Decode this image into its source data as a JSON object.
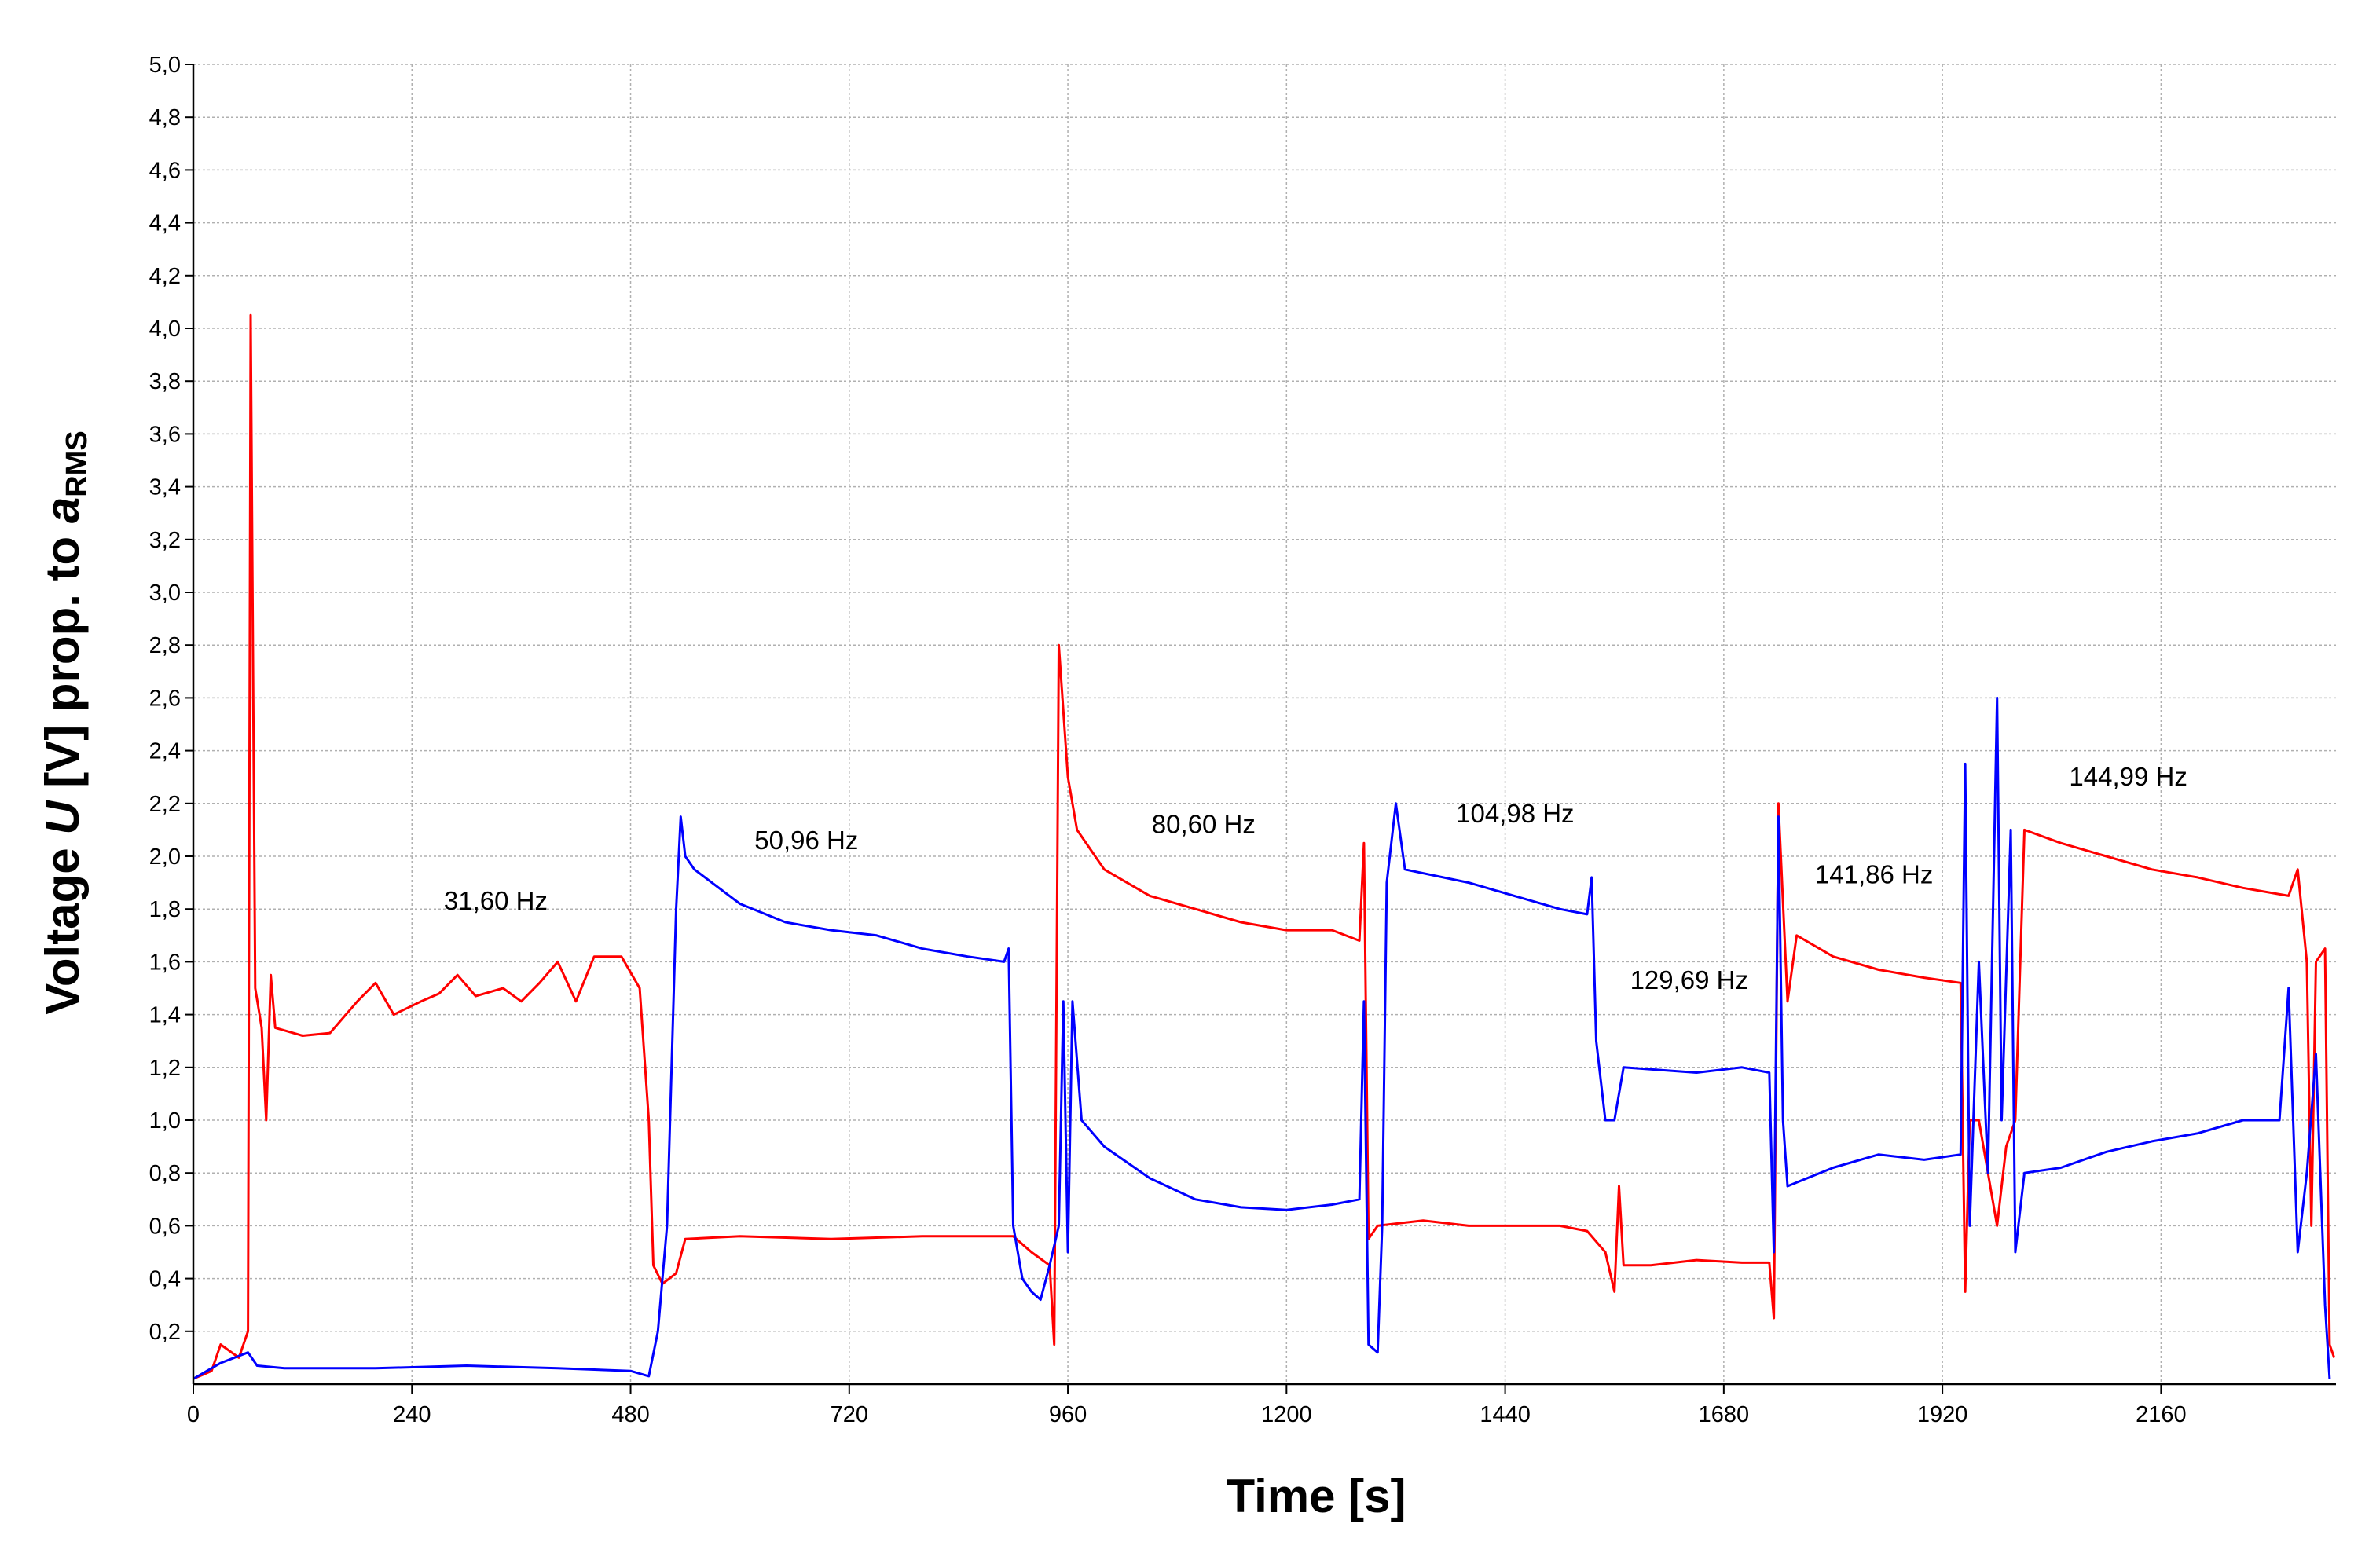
{
  "chart_data": {
    "type": "line",
    "xlabel": "Time [s]",
    "ylabel_parts": [
      "Voltage ",
      "U",
      " [V] prop. to ",
      "a",
      "RMS"
    ],
    "xlim": [
      0,
      2352
    ],
    "ylim": [
      0,
      5
    ],
    "xticks": [
      0,
      240,
      480,
      720,
      960,
      1200,
      1440,
      1680,
      1920,
      2160
    ],
    "yticks": [
      {
        "value": 0.2,
        "label": "0,2"
      },
      {
        "value": 0.4,
        "label": "0,4"
      },
      {
        "value": 0.6,
        "label": "0,6"
      },
      {
        "value": 0.8,
        "label": "0,8"
      },
      {
        "value": 1.0,
        "label": "1,0"
      },
      {
        "value": 1.2,
        "label": "1,2"
      },
      {
        "value": 1.4,
        "label": "1,4"
      },
      {
        "value": 1.6,
        "label": "1,6"
      },
      {
        "value": 1.8,
        "label": "1,8"
      },
      {
        "value": 2.0,
        "label": "2,0"
      },
      {
        "value": 2.2,
        "label": "2,2"
      },
      {
        "value": 2.4,
        "label": "2,4"
      },
      {
        "value": 2.6,
        "label": "2,6"
      },
      {
        "value": 2.8,
        "label": "2,8"
      },
      {
        "value": 3.0,
        "label": "3,0"
      },
      {
        "value": 3.2,
        "label": "3,2"
      },
      {
        "value": 3.4,
        "label": "3,4"
      },
      {
        "value": 3.6,
        "label": "3,6"
      },
      {
        "value": 3.8,
        "label": "3,8"
      },
      {
        "value": 4.0,
        "label": "4,0"
      },
      {
        "value": 4.2,
        "label": "4,2"
      },
      {
        "value": 4.4,
        "label": "4,4"
      },
      {
        "value": 4.6,
        "label": "4,6"
      },
      {
        "value": 4.8,
        "label": "4,8"
      },
      {
        "value": 5.0,
        "label": "5,0"
      }
    ],
    "grid": true,
    "annotations": [
      "31,60 Hz",
      "50,96 Hz",
      "80,60 Hz",
      "104,98 Hz",
      "129,69 Hz",
      "141,86 Hz",
      "144,99 Hz"
    ],
    "series": [
      {
        "color": "#ff0000",
        "x": [
          0,
          20,
          30,
          50,
          60,
          63,
          68,
          75,
          80,
          85,
          90,
          120,
          150,
          180,
          200,
          220,
          250,
          270,
          290,
          310,
          340,
          360,
          380,
          400,
          420,
          440,
          470,
          490,
          500,
          505,
          515,
          530,
          540,
          600,
          700,
          800,
          900,
          920,
          940,
          945,
          950,
          960,
          970,
          1000,
          1050,
          1100,
          1150,
          1200,
          1250,
          1280,
          1285,
          1290,
          1300,
          1350,
          1400,
          1450,
          1500,
          1530,
          1550,
          1560,
          1565,
          1570,
          1600,
          1650,
          1700,
          1730,
          1735,
          1740,
          1750,
          1760,
          1800,
          1850,
          1900,
          1940,
          1945,
          1950,
          1960,
          1980,
          1990,
          2000,
          2010,
          2050,
          2100,
          2150,
          2200,
          2250,
          2300,
          2310,
          2320,
          2325,
          2330,
          2340,
          2345,
          2350
        ],
        "values": [
          0.02,
          0.05,
          0.15,
          0.1,
          0.2,
          4.05,
          1.5,
          1.35,
          1.0,
          1.55,
          1.35,
          1.32,
          1.33,
          1.45,
          1.52,
          1.4,
          1.45,
          1.48,
          1.55,
          1.47,
          1.5,
          1.45,
          1.52,
          1.6,
          1.45,
          1.62,
          1.62,
          1.5,
          1.0,
          0.45,
          0.38,
          0.42,
          0.55,
          0.56,
          0.55,
          0.56,
          0.56,
          0.5,
          0.45,
          0.15,
          2.8,
          2.3,
          2.1,
          1.95,
          1.85,
          1.8,
          1.75,
          1.72,
          1.72,
          1.68,
          2.05,
          0.55,
          0.6,
          0.62,
          0.6,
          0.6,
          0.6,
          0.58,
          0.5,
          0.35,
          0.75,
          0.45,
          0.45,
          0.47,
          0.46,
          0.46,
          0.25,
          2.2,
          1.45,
          1.7,
          1.62,
          1.57,
          1.54,
          1.52,
          0.35,
          1.0,
          1.0,
          0.6,
          0.9,
          1.0,
          2.1,
          2.05,
          2.0,
          1.95,
          1.92,
          1.88,
          1.85,
          1.95,
          1.6,
          0.6,
          1.6,
          1.65,
          0.15,
          0.1
        ]
      },
      {
        "color": "#0000ff",
        "x": [
          0,
          30,
          60,
          70,
          100,
          200,
          300,
          400,
          480,
          500,
          510,
          520,
          530,
          535,
          540,
          550,
          600,
          650,
          700,
          750,
          800,
          850,
          890,
          895,
          900,
          910,
          920,
          930,
          940,
          950,
          955,
          960,
          965,
          975,
          1000,
          1050,
          1100,
          1150,
          1200,
          1250,
          1280,
          1285,
          1290,
          1300,
          1305,
          1310,
          1320,
          1330,
          1400,
          1450,
          1500,
          1530,
          1535,
          1540,
          1550,
          1560,
          1570,
          1650,
          1700,
          1730,
          1735,
          1740,
          1745,
          1750,
          1800,
          1850,
          1900,
          1940,
          1945,
          1950,
          1960,
          1970,
          1980,
          1985,
          1995,
          2000,
          2010,
          2050,
          2100,
          2150,
          2200,
          2250,
          2290,
          2300,
          2310,
          2320,
          2330,
          2340,
          2345
        ],
        "values": [
          0.02,
          0.08,
          0.12,
          0.07,
          0.06,
          0.06,
          0.07,
          0.06,
          0.05,
          0.03,
          0.2,
          0.6,
          1.8,
          2.15,
          2.0,
          1.95,
          1.82,
          1.75,
          1.72,
          1.7,
          1.65,
          1.62,
          1.6,
          1.65,
          0.6,
          0.4,
          0.35,
          0.32,
          0.45,
          0.6,
          1.45,
          0.5,
          1.45,
          1.0,
          0.9,
          0.78,
          0.7,
          0.67,
          0.66,
          0.68,
          0.7,
          1.45,
          0.15,
          0.12,
          0.6,
          1.9,
          2.2,
          1.95,
          1.9,
          1.85,
          1.8,
          1.78,
          1.92,
          1.3,
          1.0,
          1.0,
          1.2,
          1.18,
          1.2,
          1.18,
          0.5,
          2.15,
          1.0,
          0.75,
          0.82,
          0.87,
          0.85,
          0.87,
          2.35,
          0.6,
          1.6,
          0.8,
          2.6,
          1.0,
          2.1,
          0.5,
          0.8,
          0.82,
          0.88,
          0.92,
          0.95,
          1.0,
          1.0,
          1.5,
          0.5,
          0.8,
          1.25,
          0.3,
          0.02
        ]
      }
    ]
  }
}
